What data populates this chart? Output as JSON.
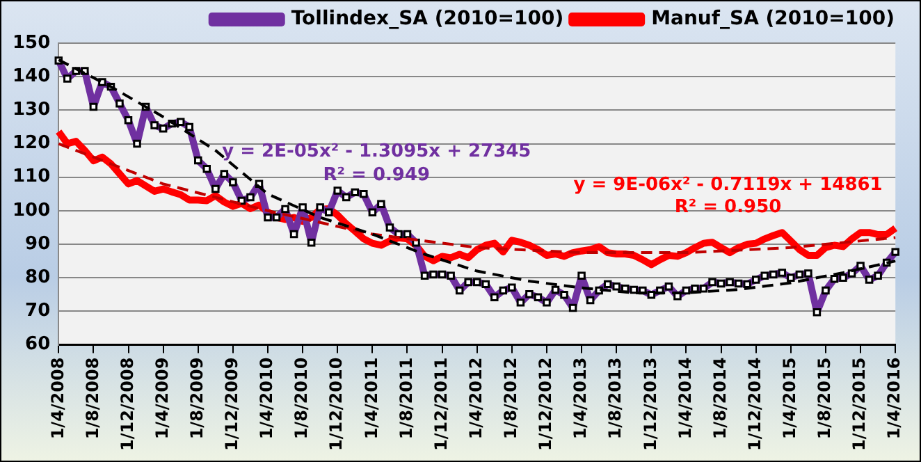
{
  "chart_data": {
    "type": "line",
    "categories": [
      "1/4/2008",
      null,
      null,
      null,
      "1/8/2008",
      null,
      null,
      null,
      "1/12/2008",
      null,
      null,
      null,
      "1/4/2009",
      null,
      null,
      null,
      "1/8/2009",
      null,
      null,
      null,
      "1/12/2009",
      null,
      null,
      null,
      "1/4/2010",
      null,
      null,
      null,
      "1/8/2010",
      null,
      null,
      null,
      "1/12/2010",
      null,
      null,
      null,
      "1/4/2011",
      null,
      null,
      null,
      "1/8/2011",
      null,
      null,
      null,
      "1/12/2011",
      null,
      null,
      null,
      "1/4/2012",
      null,
      null,
      null,
      "1/8/2012",
      null,
      null,
      null,
      "1/12/2012",
      null,
      null,
      null,
      "1/4/2013",
      null,
      null,
      null,
      "1/8/2013",
      null,
      null,
      null,
      "1/12/2013",
      null,
      null,
      null,
      "1/4/2014",
      null,
      null,
      null,
      "1/8/2014",
      null,
      null,
      null,
      "1/12/2014",
      null,
      null,
      null,
      "1/4/2015",
      null,
      null,
      null,
      "1/8/2015",
      null,
      null,
      null,
      "1/12/2015",
      null,
      null,
      null,
      "1/4/2016"
    ],
    "series": [
      {
        "name": "Tollindex_SA (2010=100)",
        "color": "#7030a0",
        "marker": "square",
        "values": [
          144.8,
          139.4,
          141.7,
          141.7,
          131,
          138.4,
          137,
          132,
          127,
          120,
          131,
          125.5,
          124.5,
          126,
          126.5,
          125,
          115,
          112.5,
          106.5,
          111,
          108.5,
          103,
          104,
          108,
          98,
          98,
          100.5,
          93,
          101,
          90.5,
          101,
          99.5,
          106,
          104,
          105.5,
          105,
          99.5,
          102,
          95,
          93,
          93,
          90.5,
          80.6,
          81,
          81,
          80.6,
          76.2,
          78.7,
          78.7,
          78.1,
          74.2,
          76.2,
          77.1,
          72.6,
          75.1,
          74.2,
          72.6,
          76.4,
          74.9,
          71,
          80.6,
          73.3,
          76.2,
          78.1,
          77.4,
          76.8,
          76.4,
          76.2,
          74.9,
          76.2,
          77.4,
          74.5,
          76.2,
          76.8,
          76.8,
          78.7,
          78.3,
          78.7,
          78.3,
          78.1,
          79.4,
          80.6,
          81,
          81.5,
          80,
          81,
          81.3,
          69.7,
          76.2,
          79.7,
          80,
          81.3,
          83.6,
          79.4,
          80.6,
          84.5,
          87.7
        ]
      },
      {
        "name": "Manuf_SA (2010=100)",
        "color": "#ff0000",
        "marker": "none",
        "values": [
          123.6,
          120,
          120.7,
          118,
          114.9,
          116,
          114,
          111,
          108,
          109,
          107.4,
          105.8,
          106.5,
          105.6,
          104.8,
          103.2,
          103.2,
          103,
          104.5,
          102.6,
          101.3,
          102.2,
          100.6,
          101.7,
          99.6,
          98,
          97.4,
          98,
          96.8,
          98,
          100.4,
          100.6,
          98.7,
          96.1,
          93.9,
          91.6,
          90.3,
          89.7,
          91,
          91.9,
          91.6,
          89.7,
          86.4,
          85.1,
          86.4,
          86,
          87,
          86,
          88.4,
          89.7,
          90.3,
          87.7,
          91.2,
          90.6,
          89.7,
          88.4,
          86.7,
          87.1,
          86.4,
          87.5,
          88,
          88.4,
          89.3,
          87.5,
          87.1,
          87.1,
          86.7,
          85.4,
          83.9,
          85.4,
          86.7,
          86.4,
          87.5,
          89,
          90.3,
          90.6,
          89,
          87.5,
          89,
          90,
          90.3,
          91.6,
          92.6,
          93.5,
          91,
          88.4,
          86.7,
          86.7,
          89,
          89.7,
          89.3,
          91.6,
          93.5,
          93.5,
          92.9,
          92.9,
          94.8
        ]
      },
      {
        "color": "#000000",
        "line_style": "dashed",
        "marker": "none",
        "values": [
          145,
          null,
          null,
          null,
          null,
          null,
          137,
          null,
          null,
          null,
          null,
          null,
          128,
          null,
          null,
          null,
          null,
          null,
          118,
          null,
          null,
          null,
          null,
          null,
          105,
          null,
          null,
          null,
          null,
          null,
          98,
          null,
          null,
          null,
          null,
          null,
          93,
          null,
          null,
          null,
          null,
          null,
          87,
          null,
          null,
          null,
          null,
          null,
          82,
          null,
          null,
          null,
          null,
          null,
          79,
          null,
          null,
          null,
          null,
          null,
          77,
          null,
          null,
          null,
          null,
          null,
          75.5,
          null,
          null,
          null,
          null,
          null,
          75.5,
          null,
          null,
          null,
          null,
          null,
          76.5,
          null,
          null,
          null,
          null,
          null,
          78.5,
          null,
          null,
          null,
          null,
          null,
          81.5,
          null,
          null,
          null,
          null,
          null,
          85
        ]
      },
      {
        "color": "#c00000",
        "line_style": "dashed",
        "marker": "none",
        "values": [
          120,
          null,
          null,
          null,
          null,
          null,
          null,
          null,
          null,
          null,
          null,
          null,
          108,
          null,
          null,
          null,
          null,
          null,
          null,
          null,
          null,
          null,
          null,
          null,
          100,
          null,
          null,
          null,
          null,
          null,
          null,
          null,
          null,
          null,
          null,
          null,
          93,
          null,
          null,
          null,
          null,
          null,
          null,
          null,
          null,
          null,
          null,
          null,
          89,
          null,
          null,
          null,
          null,
          null,
          null,
          null,
          null,
          null,
          null,
          null,
          87.5,
          null,
          null,
          null,
          null,
          null,
          null,
          null,
          null,
          null,
          null,
          null,
          87.5,
          null,
          null,
          null,
          null,
          null,
          null,
          null,
          null,
          null,
          null,
          null,
          89,
          null,
          null,
          null,
          null,
          null,
          null,
          null,
          null,
          null,
          null,
          null,
          92
        ]
      }
    ],
    "annotations": [
      "y = 2E-05x² - 1.3095x + 27345",
      "R² = 0.949",
      "y = 9E-06x² - 0.7119x + 14861",
      "R² = 0.950"
    ],
    "ylim": [
      60,
      150
    ],
    "yticks": [
      60,
      70,
      80,
      90,
      100,
      110,
      120,
      130,
      140,
      150
    ],
    "grid": "y",
    "legend": "top"
  }
}
